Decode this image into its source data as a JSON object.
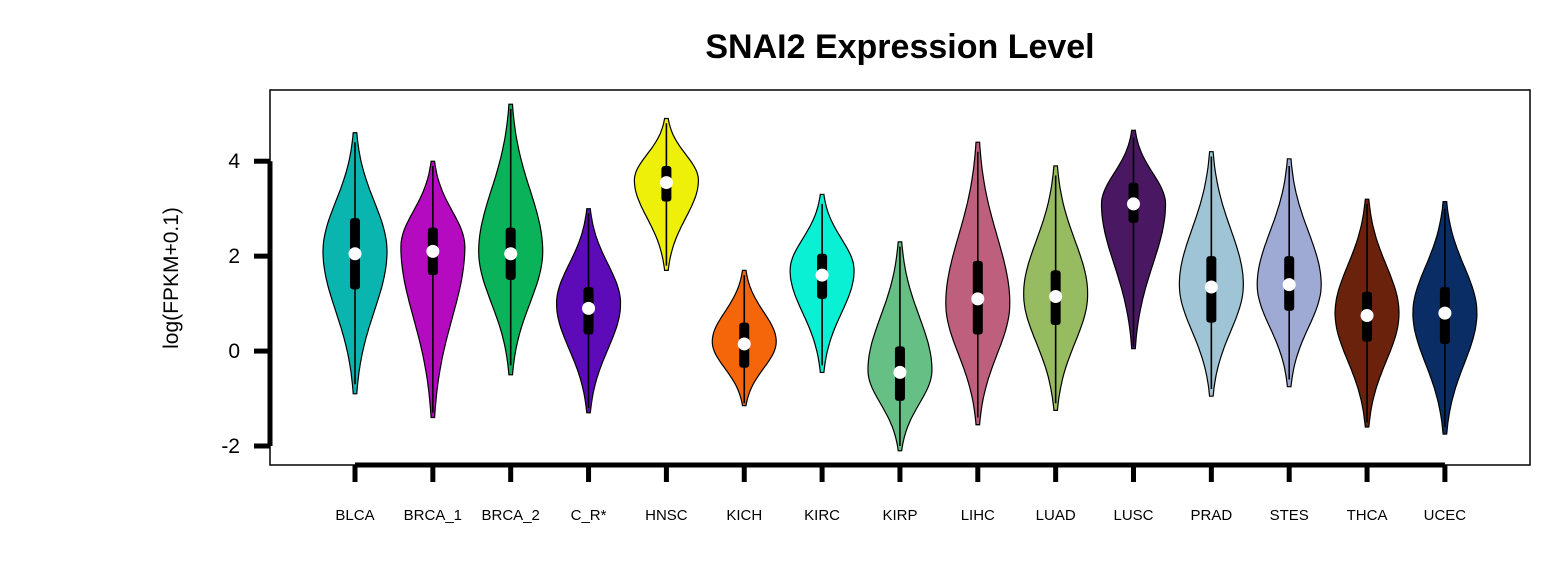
{
  "chart_data": {
    "type": "violin",
    "title": "SNAI2 Expression Level",
    "xlabel": "",
    "ylabel": "log(FPKM+0.1)",
    "ylim": [
      -2.4,
      5.5
    ],
    "yticks": [
      -2,
      0,
      2,
      4
    ],
    "grid": false,
    "legend": "none",
    "categories": [
      "BLCA",
      "BRCA_1",
      "BRCA_2",
      "C_R*",
      "HNSC",
      "KICH",
      "KIRC",
      "KIRP",
      "LIHC",
      "LUAD",
      "LUSC",
      "PRAD",
      "STES",
      "THCA",
      "UCEC"
    ],
    "violins": [
      {
        "category": "BLCA",
        "color": "#0ab5b0",
        "min": -0.9,
        "max": 4.6,
        "q1": 1.3,
        "median": 2.05,
        "q3": 2.8,
        "whisker_low": -0.7,
        "whisker_high": 4.4,
        "mode": 2.1,
        "width": 0.85
      },
      {
        "category": "BRCA_1",
        "color": "#b40ac0",
        "min": -1.4,
        "max": 4.0,
        "q1": 1.6,
        "median": 2.1,
        "q3": 2.6,
        "whisker_low": -1.3,
        "whisker_high": 3.9,
        "mode": 2.2,
        "width": 0.85
      },
      {
        "category": "BRCA_2",
        "color": "#0ab35a",
        "min": -0.5,
        "max": 5.2,
        "q1": 1.5,
        "median": 2.05,
        "q3": 2.6,
        "whisker_low": -0.3,
        "whisker_high": 5.1,
        "mode": 2.1,
        "width": 0.85
      },
      {
        "category": "C_R*",
        "color": "#5d0ab9",
        "min": -1.3,
        "max": 3.0,
        "q1": 0.35,
        "median": 0.9,
        "q3": 1.35,
        "whisker_low": -1.2,
        "whisker_high": 2.9,
        "mode": 1.0,
        "width": 0.85
      },
      {
        "category": "HNSC",
        "color": "#eef00a",
        "min": 1.7,
        "max": 4.9,
        "q1": 3.15,
        "median": 3.55,
        "q3": 3.9,
        "whisker_low": 1.8,
        "whisker_high": 4.8,
        "mode": 3.6,
        "width": 0.85
      },
      {
        "category": "KICH",
        "color": "#f5650a",
        "min": -1.15,
        "max": 1.7,
        "q1": -0.35,
        "median": 0.15,
        "q3": 0.6,
        "whisker_low": -1.1,
        "whisker_high": 1.6,
        "mode": 0.2,
        "width": 0.85
      },
      {
        "category": "KIRC",
        "color": "#0af0d5",
        "min": -0.45,
        "max": 3.3,
        "q1": 1.1,
        "median": 1.6,
        "q3": 2.05,
        "whisker_low": -0.3,
        "whisker_high": 3.1,
        "mode": 1.7,
        "width": 0.85
      },
      {
        "category": "KIRP",
        "color": "#66c085",
        "min": -2.1,
        "max": 2.3,
        "q1": -1.05,
        "median": -0.45,
        "q3": 0.1,
        "whisker_low": -2.0,
        "whisker_high": 2.2,
        "mode": -0.4,
        "width": 0.85
      },
      {
        "category": "LIHC",
        "color": "#bd5f7d",
        "min": -1.55,
        "max": 4.4,
        "q1": 0.35,
        "median": 1.1,
        "q3": 1.9,
        "whisker_low": -1.4,
        "whisker_high": 4.2,
        "mode": 1.0,
        "width": 0.85
      },
      {
        "category": "LUAD",
        "color": "#97bb61",
        "min": -1.25,
        "max": 3.9,
        "q1": 0.55,
        "median": 1.15,
        "q3": 1.7,
        "whisker_low": -1.1,
        "whisker_high": 3.7,
        "mode": 1.2,
        "width": 0.85
      },
      {
        "category": "LUSC",
        "color": "#4a1863",
        "min": 0.05,
        "max": 4.65,
        "q1": 2.7,
        "median": 3.1,
        "q3": 3.55,
        "whisker_low": 0.1,
        "whisker_high": 4.5,
        "mode": 3.1,
        "width": 0.85
      },
      {
        "category": "PRAD",
        "color": "#9fc4d5",
        "min": -0.95,
        "max": 4.2,
        "q1": 0.6,
        "median": 1.35,
        "q3": 2.0,
        "whisker_low": -0.8,
        "whisker_high": 4.1,
        "mode": 1.4,
        "width": 0.85
      },
      {
        "category": "STES",
        "color": "#9eaad4",
        "min": -0.75,
        "max": 4.05,
        "q1": 0.85,
        "median": 1.4,
        "q3": 2.0,
        "whisker_low": -0.6,
        "whisker_high": 3.9,
        "mode": 1.4,
        "width": 0.85
      },
      {
        "category": "THCA",
        "color": "#6b220c",
        "min": -1.6,
        "max": 3.2,
        "q1": 0.2,
        "median": 0.75,
        "q3": 1.25,
        "whisker_low": -1.5,
        "whisker_high": 3.1,
        "mode": 0.8,
        "width": 0.85
      },
      {
        "category": "UCEC",
        "color": "#0a2d66",
        "min": -1.75,
        "max": 3.15,
        "q1": 0.15,
        "median": 0.8,
        "q3": 1.35,
        "whisker_low": -1.6,
        "whisker_high": 3.0,
        "mode": 0.8,
        "width": 0.85
      }
    ]
  }
}
